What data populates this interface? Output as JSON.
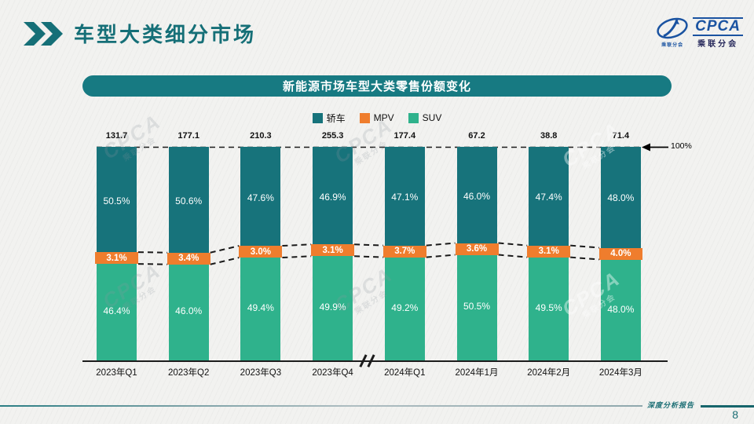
{
  "page": {
    "title": "车型大类细分市场",
    "footer_text": "深度分析报告",
    "page_number": "8"
  },
  "logo": {
    "name": "CPCA",
    "subtitle": "乘联分会"
  },
  "colors": {
    "accent_teal": "#156F77",
    "banner_teal": "#177A82",
    "logo_blue": "#1A53A1"
  },
  "chart_data": {
    "type": "bar",
    "stacked": true,
    "title": "新能源市场车型大类零售份额变化",
    "unit": "%",
    "legend_position": "top",
    "axis_max_label": "100%",
    "axis_break_after": "2023年Q4",
    "categories": [
      "2023年Q1",
      "2023年Q2",
      "2023年Q3",
      "2023年Q4",
      "2024年Q1",
      "2024年1月",
      "2024年2月",
      "2024年3月"
    ],
    "totals": [
      131.7,
      177.1,
      210.3,
      255.3,
      177.4,
      67.2,
      38.8,
      71.4
    ],
    "series": [
      {
        "name": "轿车",
        "color": "#17737B",
        "values": [
          50.5,
          50.6,
          47.6,
          46.9,
          47.1,
          46.0,
          47.4,
          48.0
        ]
      },
      {
        "name": "MPV",
        "color": "#EF7D2D",
        "values": [
          3.1,
          3.4,
          3.0,
          3.1,
          3.7,
          3.6,
          3.1,
          4.0
        ]
      },
      {
        "name": "SUV",
        "color": "#2FB28C",
        "values": [
          46.4,
          46.0,
          49.4,
          49.9,
          49.2,
          50.5,
          49.5,
          48.0
        ]
      }
    ]
  }
}
